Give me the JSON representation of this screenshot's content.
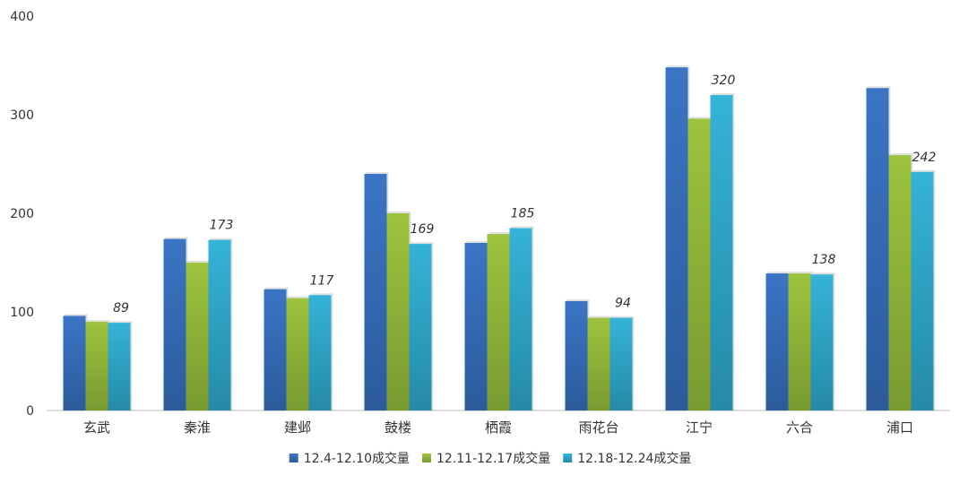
{
  "chart_data": {
    "type": "bar",
    "title": "",
    "xlabel": "",
    "ylabel": "",
    "ylim": [
      0,
      400
    ],
    "yticks": [
      0,
      100,
      200,
      300,
      400
    ],
    "grid": false,
    "legend_position": "bottom",
    "categories": [
      "玄武",
      "秦淮",
      "建邺",
      "鼓楼",
      "栖霞",
      "雨花台",
      "江宁",
      "六合",
      "浦口"
    ],
    "series": [
      {
        "name": "12.4-12.10成交量",
        "color": "#3a75c4",
        "color_dark": "#2d5b9c",
        "values": [
          96,
          174,
          123,
          240,
          170,
          111,
          348,
          139,
          327
        ]
      },
      {
        "name": "12.11-12.17成交量",
        "color": "#9cc43e",
        "color_dark": "#7a9a30",
        "values": [
          90,
          150,
          114,
          200,
          179,
          94,
          296,
          139,
          259
        ]
      },
      {
        "name": "12.18-12.24成交量",
        "color": "#35b3d8",
        "color_dark": "#268aa6",
        "values": [
          89,
          173,
          117,
          169,
          185,
          94,
          320,
          138,
          242
        ]
      }
    ],
    "data_labels": {
      "series_index": 2,
      "values": [
        "89",
        "173",
        "117",
        "169",
        "185",
        "94",
        "320",
        "138",
        "242"
      ]
    }
  }
}
